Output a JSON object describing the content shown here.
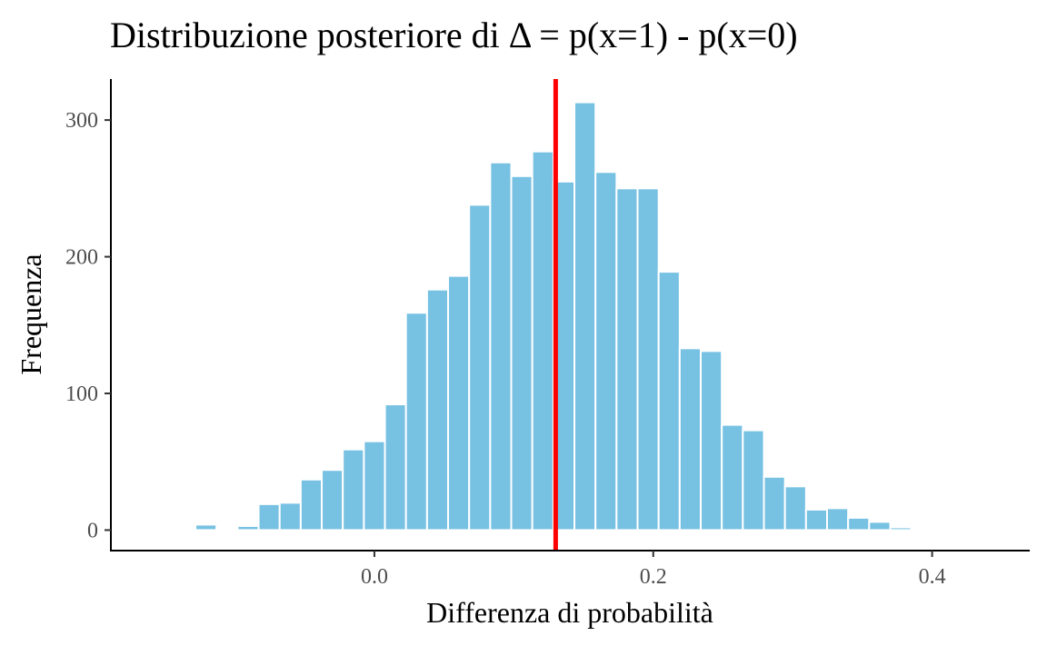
{
  "chart_data": {
    "type": "bar",
    "title": "Distribuzione posteriore di Δ = p(x=1) - p(x=0)",
    "xlabel": "Differenza di probabilità",
    "ylabel": "Frequenza",
    "xlim": [
      -0.189,
      0.47
    ],
    "ylim": [
      -15,
      330
    ],
    "xticks": [
      0.0,
      0.2,
      0.4
    ],
    "xtick_labels": [
      "0.0",
      "0.2",
      "0.4"
    ],
    "yticks": [
      0,
      100,
      200,
      300
    ],
    "ytick_labels": [
      "0",
      "100",
      "200",
      "300"
    ],
    "bin_width": 0.0151,
    "bin_centers": [
      -0.151,
      -0.1208,
      -0.1057,
      -0.0906,
      -0.0755,
      -0.0604,
      -0.0453,
      -0.0302,
      -0.0151,
      0.0,
      0.0151,
      0.0302,
      0.0453,
      0.0604,
      0.0755,
      0.0906,
      0.1057,
      0.1208,
      0.1359,
      0.151,
      0.1661,
      0.1812,
      0.1963,
      0.2114,
      0.2265,
      0.2416,
      0.2567,
      0.2718,
      0.2869,
      0.302,
      0.3171,
      0.3322,
      0.3473,
      0.3624,
      0.3775,
      0.3926
    ],
    "values": [
      1,
      4,
      1,
      3,
      19,
      20,
      37,
      44,
      59,
      65,
      92,
      159,
      176,
      186,
      238,
      269,
      259,
      277,
      255,
      313,
      262,
      250,
      250,
      189,
      133,
      131,
      77,
      73,
      39,
      32,
      15,
      16,
      9,
      6,
      2,
      1
    ],
    "vline": {
      "x": 0.13,
      "color": "#ff0000"
    },
    "bar_color": "#77c1e3",
    "bar_edge_color": "#ffffff",
    "grid": false
  }
}
